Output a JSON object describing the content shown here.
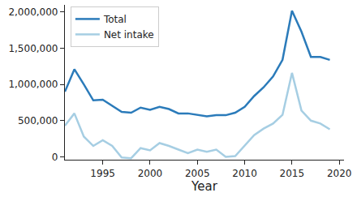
{
  "chart_data": {
    "type": "line",
    "x_label": "Year",
    "x": [
      1991,
      1992,
      1993,
      1994,
      1995,
      1996,
      1997,
      1998,
      1999,
      2000,
      2001,
      2002,
      2003,
      2004,
      2005,
      2006,
      2007,
      2008,
      2009,
      2010,
      2011,
      2012,
      2013,
      2014,
      2015,
      2016,
      2017,
      2018,
      2019
    ],
    "series": [
      {
        "name": "Total",
        "color": "#2b7bba",
        "values": [
          900000,
          1210000,
          1000000,
          780000,
          790000,
          700000,
          620000,
          610000,
          680000,
          650000,
          690000,
          660000,
          600000,
          600000,
          580000,
          560000,
          575000,
          575000,
          610000,
          690000,
          840000,
          960000,
          1110000,
          1340000,
          2020000,
          1730000,
          1380000,
          1380000,
          1340000
        ]
      },
      {
        "name": "Net intake",
        "color": "#a6cee3",
        "values": [
          430000,
          600000,
          280000,
          150000,
          230000,
          150000,
          -10000,
          -20000,
          120000,
          90000,
          190000,
          150000,
          100000,
          50000,
          100000,
          70000,
          100000,
          0,
          10000,
          150000,
          300000,
          390000,
          460000,
          580000,
          1160000,
          640000,
          500000,
          460000,
          380000
        ]
      }
    ],
    "xlim": [
      1991,
      2020.5
    ],
    "xticks": [
      1995,
      2000,
      2005,
      2010,
      2015,
      2020
    ],
    "ylim": [
      -40000,
      2100000
    ],
    "yticks": [
      0,
      {
        "value": 500000,
        "label": "500,000"
      },
      {
        "value": 1000000,
        "label": "1,000,000"
      },
      {
        "value": 1500000,
        "label": "1,500,000"
      },
      {
        "value": 2000000,
        "label": "2,000,000"
      }
    ],
    "grid": false,
    "legend": "upper left"
  }
}
